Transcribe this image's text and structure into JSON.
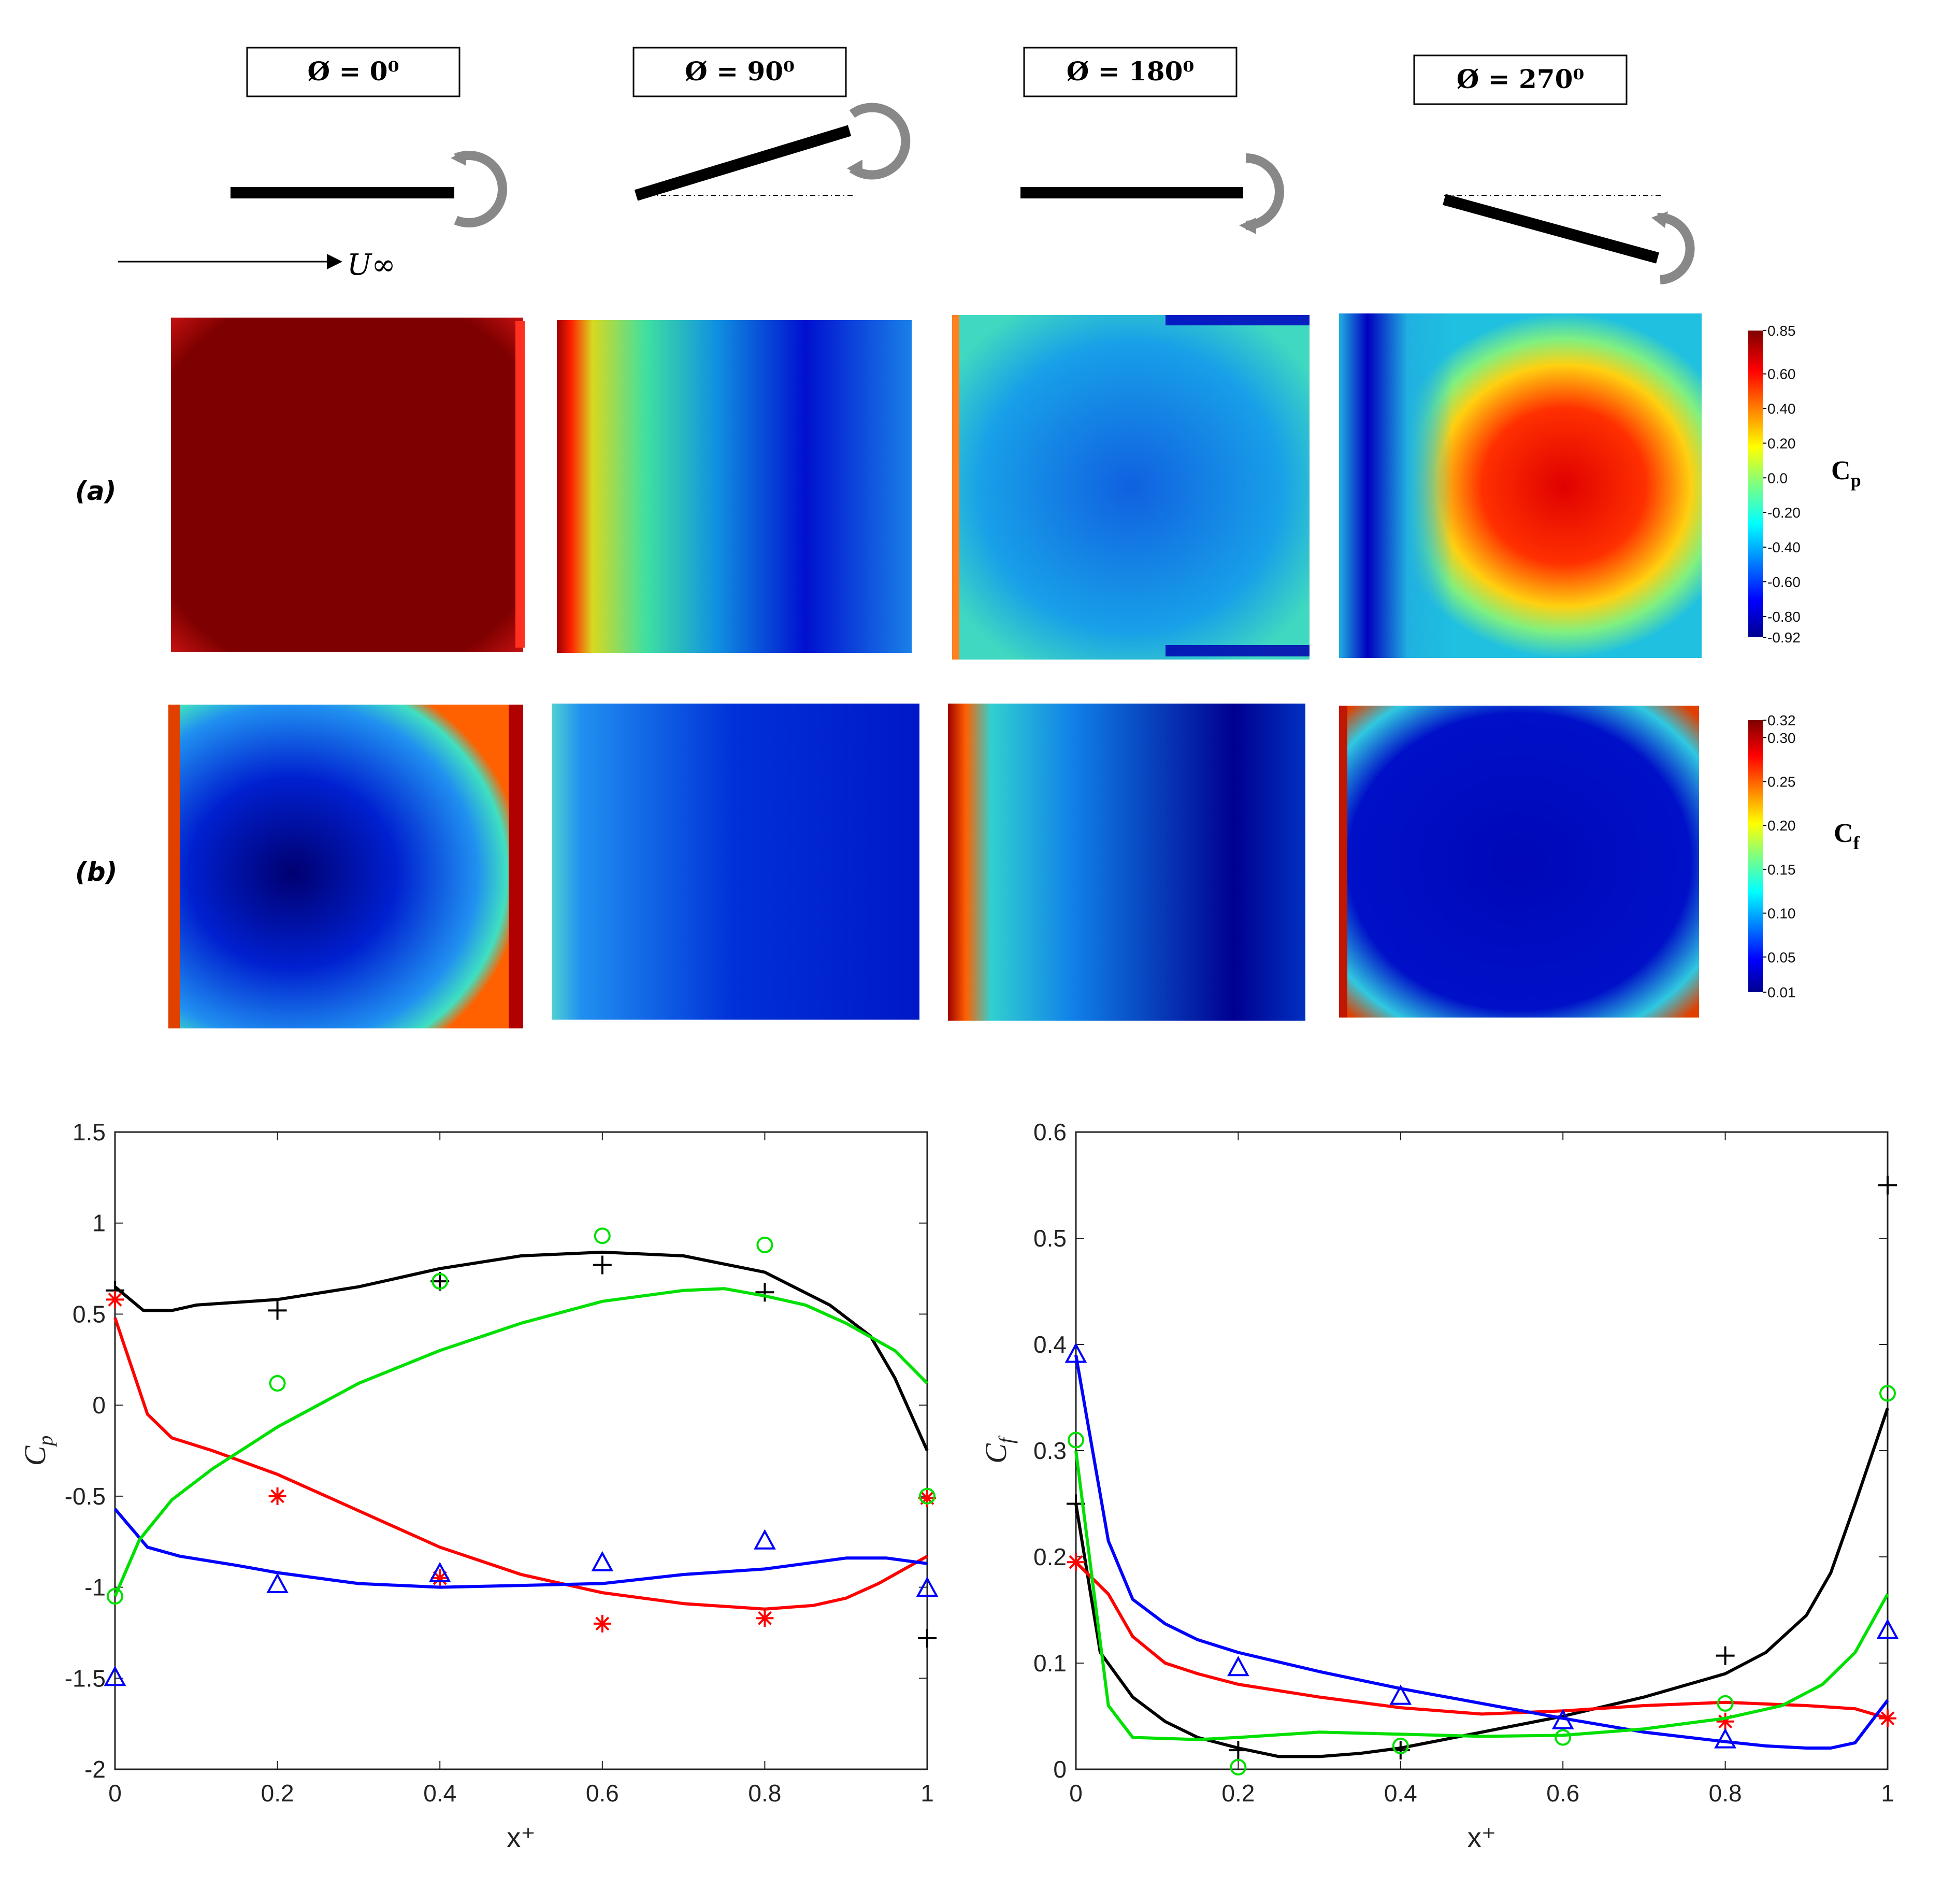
{
  "phases": [
    "Ø = 0⁰",
    "Ø = 90⁰",
    "Ø = 180⁰",
    "Ø = 270⁰"
  ],
  "freestream_label": "U∞",
  "row_labels": [
    "(a)",
    "(b)"
  ],
  "colorbars": [
    {
      "title": "C",
      "subscript": "p",
      "ticks": [
        "0.85",
        "0.60",
        "0.40",
        "0.20",
        "0.0",
        "-0.20",
        "-0.40",
        "-0.60",
        "-0.80",
        "-0.92"
      ],
      "min": -0.92,
      "max": 0.85
    },
    {
      "title": "C",
      "subscript": "f",
      "ticks": [
        "0.32",
        "0.30",
        "0.25",
        "0.20",
        "0.15",
        "0.10",
        "0.05",
        "0.01"
      ],
      "min": 0.01,
      "max": 0.32
    }
  ],
  "colors": {
    "phi0": "#000000",
    "phi90": "#ff0000",
    "phi180": "#0000ff",
    "phi270": "#00e000"
  },
  "chart_data": [
    {
      "type": "line",
      "xlabel": "x⁺",
      "ylabel": "C",
      "ylabel_sub": "p",
      "xlim": [
        0,
        1
      ],
      "ylim": [
        -2,
        1.5
      ],
      "xticks": [
        0,
        0.2,
        0.4,
        0.6,
        0.8,
        1
      ],
      "yticks": [
        1.5,
        1,
        0.5,
        0,
        -0.5,
        -1,
        -1.5,
        -2
      ],
      "xtick_labels": [
        "0",
        "0.2",
        "0.4",
        "0.6",
        "0.8",
        "1"
      ],
      "ytick_labels": [
        "1.5",
        "1",
        "0.5",
        "0",
        "-0.5",
        "-1",
        "-1.5",
        "-2"
      ],
      "series": [
        {
          "name": "phi0",
          "color": "#000000",
          "marker": "+",
          "line": [
            [
              0,
              0.65
            ],
            [
              0.035,
              0.52
            ],
            [
              0.07,
              0.52
            ],
            [
              0.1,
              0.55
            ],
            [
              0.2,
              0.58
            ],
            [
              0.3,
              0.65
            ],
            [
              0.4,
              0.75
            ],
            [
              0.5,
              0.82
            ],
            [
              0.6,
              0.84
            ],
            [
              0.7,
              0.82
            ],
            [
              0.8,
              0.73
            ],
            [
              0.88,
              0.55
            ],
            [
              0.93,
              0.38
            ],
            [
              0.96,
              0.15
            ],
            [
              1,
              -0.25
            ]
          ],
          "points": [
            [
              0,
              0.63
            ],
            [
              0.2,
              0.52
            ],
            [
              0.4,
              0.68
            ],
            [
              0.6,
              0.77
            ],
            [
              0.8,
              0.62
            ],
            [
              1,
              -1.28
            ]
          ]
        },
        {
          "name": "phi90",
          "color": "#ff0000",
          "marker": "*",
          "line": [
            [
              0,
              0.48
            ],
            [
              0.04,
              -0.05
            ],
            [
              0.07,
              -0.18
            ],
            [
              0.12,
              -0.25
            ],
            [
              0.2,
              -0.38
            ],
            [
              0.3,
              -0.58
            ],
            [
              0.4,
              -0.78
            ],
            [
              0.5,
              -0.93
            ],
            [
              0.6,
              -1.03
            ],
            [
              0.7,
              -1.09
            ],
            [
              0.8,
              -1.12
            ],
            [
              0.86,
              -1.1
            ],
            [
              0.9,
              -1.06
            ],
            [
              0.94,
              -0.98
            ],
            [
              1,
              -0.83
            ]
          ],
          "points": [
            [
              0,
              0.58
            ],
            [
              0.2,
              -0.5
            ],
            [
              0.4,
              -0.95
            ],
            [
              0.6,
              -1.2
            ],
            [
              0.8,
              -1.17
            ],
            [
              1,
              -0.51
            ]
          ]
        },
        {
          "name": "phi180",
          "color": "#0000ff",
          "marker": "triangle",
          "line": [
            [
              0,
              -0.57
            ],
            [
              0.04,
              -0.78
            ],
            [
              0.08,
              -0.83
            ],
            [
              0.15,
              -0.88
            ],
            [
              0.2,
              -0.92
            ],
            [
              0.3,
              -0.98
            ],
            [
              0.4,
              -1.0
            ],
            [
              0.5,
              -0.99
            ],
            [
              0.6,
              -0.98
            ],
            [
              0.7,
              -0.93
            ],
            [
              0.8,
              -0.9
            ],
            [
              0.9,
              -0.84
            ],
            [
              0.95,
              -0.84
            ],
            [
              1,
              -0.87
            ]
          ],
          "points": [
            [
              0,
              -1.5
            ],
            [
              0.2,
              -0.99
            ],
            [
              0.4,
              -0.93
            ],
            [
              0.6,
              -0.87
            ],
            [
              0.8,
              -0.75
            ],
            [
              1,
              -1.01
            ]
          ]
        },
        {
          "name": "phi270",
          "color": "#00e000",
          "marker": "o",
          "line": [
            [
              0,
              -1.05
            ],
            [
              0.03,
              -0.74
            ],
            [
              0.07,
              -0.52
            ],
            [
              0.12,
              -0.35
            ],
            [
              0.2,
              -0.12
            ],
            [
              0.3,
              0.12
            ],
            [
              0.4,
              0.3
            ],
            [
              0.5,
              0.45
            ],
            [
              0.6,
              0.57
            ],
            [
              0.7,
              0.63
            ],
            [
              0.75,
              0.64
            ],
            [
              0.8,
              0.6
            ],
            [
              0.85,
              0.55
            ],
            [
              0.9,
              0.45
            ],
            [
              0.96,
              0.3
            ],
            [
              1,
              0.12
            ]
          ],
          "points": [
            [
              0,
              -1.05
            ],
            [
              0.2,
              0.12
            ],
            [
              0.4,
              0.68
            ],
            [
              0.6,
              0.93
            ],
            [
              0.8,
              0.88
            ],
            [
              1,
              -0.5
            ]
          ]
        }
      ]
    },
    {
      "type": "line",
      "xlabel": "x⁺",
      "ylabel": "C",
      "ylabel_sub": "f",
      "xlim": [
        0,
        1
      ],
      "ylim": [
        0,
        0.6
      ],
      "xticks": [
        0,
        0.2,
        0.4,
        0.6,
        0.8,
        1
      ],
      "yticks": [
        0.6,
        0.5,
        0.4,
        0.3,
        0.2,
        0.1,
        0
      ],
      "xtick_labels": [
        "0",
        "0.2",
        "0.4",
        "0.6",
        "0.8",
        "1"
      ],
      "ytick_labels": [
        "0.6",
        "0.5",
        "0.4",
        "0.3",
        "0.2",
        "0.1",
        "0"
      ],
      "series": [
        {
          "name": "phi0",
          "color": "#000000",
          "marker": "+",
          "line": [
            [
              0,
              0.25
            ],
            [
              0.03,
              0.11
            ],
            [
              0.07,
              0.068
            ],
            [
              0.11,
              0.045
            ],
            [
              0.15,
              0.03
            ],
            [
              0.2,
              0.02
            ],
            [
              0.25,
              0.012
            ],
            [
              0.3,
              0.012
            ],
            [
              0.35,
              0.015
            ],
            [
              0.4,
              0.02
            ],
            [
              0.5,
              0.035
            ],
            [
              0.6,
              0.05
            ],
            [
              0.7,
              0.068
            ],
            [
              0.8,
              0.09
            ],
            [
              0.85,
              0.11
            ],
            [
              0.9,
              0.145
            ],
            [
              0.93,
              0.185
            ],
            [
              0.96,
              0.25
            ],
            [
              1,
              0.34
            ]
          ],
          "points": [
            [
              0,
              0.25
            ],
            [
              0.2,
              0.018
            ],
            [
              0.4,
              0.018
            ],
            [
              0.8,
              0.107
            ],
            [
              1,
              0.55
            ]
          ]
        },
        {
          "name": "phi90",
          "color": "#ff0000",
          "marker": "*",
          "line": [
            [
              0,
              0.195
            ],
            [
              0.04,
              0.165
            ],
            [
              0.07,
              0.125
            ],
            [
              0.11,
              0.1
            ],
            [
              0.15,
              0.09
            ],
            [
              0.2,
              0.08
            ],
            [
              0.3,
              0.068
            ],
            [
              0.4,
              0.058
            ],
            [
              0.5,
              0.052
            ],
            [
              0.6,
              0.055
            ],
            [
              0.7,
              0.06
            ],
            [
              0.8,
              0.063
            ],
            [
              0.9,
              0.06
            ],
            [
              0.96,
              0.057
            ],
            [
              1,
              0.048
            ]
          ],
          "points": [
            [
              0,
              0.195
            ],
            [
              0.8,
              0.045
            ],
            [
              1,
              0.048
            ]
          ]
        },
        {
          "name": "phi180",
          "color": "#0000ff",
          "marker": "triangle",
          "line": [
            [
              0,
              0.39
            ],
            [
              0.04,
              0.215
            ],
            [
              0.07,
              0.16
            ],
            [
              0.11,
              0.137
            ],
            [
              0.15,
              0.122
            ],
            [
              0.2,
              0.11
            ],
            [
              0.3,
              0.092
            ],
            [
              0.4,
              0.076
            ],
            [
              0.5,
              0.062
            ],
            [
              0.6,
              0.048
            ],
            [
              0.7,
              0.035
            ],
            [
              0.8,
              0.026
            ],
            [
              0.85,
              0.022
            ],
            [
              0.9,
              0.02
            ],
            [
              0.93,
              0.02
            ],
            [
              0.96,
              0.025
            ],
            [
              1,
              0.065
            ]
          ],
          "points": [
            [
              0,
              0.39
            ],
            [
              0.2,
              0.095
            ],
            [
              0.4,
              0.068
            ],
            [
              0.6,
              0.045
            ],
            [
              0.8,
              0.027
            ],
            [
              1,
              0.13
            ]
          ]
        },
        {
          "name": "phi270",
          "color": "#00e000",
          "marker": "o",
          "line": [
            [
              0,
              0.3
            ],
            [
              0.04,
              0.06
            ],
            [
              0.07,
              0.03
            ],
            [
              0.15,
              0.028
            ],
            [
              0.2,
              0.03
            ],
            [
              0.3,
              0.035
            ],
            [
              0.4,
              0.033
            ],
            [
              0.5,
              0.031
            ],
            [
              0.6,
              0.032
            ],
            [
              0.7,
              0.038
            ],
            [
              0.8,
              0.048
            ],
            [
              0.87,
              0.06
            ],
            [
              0.92,
              0.08
            ],
            [
              0.96,
              0.11
            ],
            [
              1,
              0.165
            ]
          ],
          "points": [
            [
              0,
              0.31
            ],
            [
              0.2,
              0.002
            ],
            [
              0.4,
              0.022
            ],
            [
              0.6,
              0.03
            ],
            [
              0.8,
              0.062
            ],
            [
              1,
              0.354
            ]
          ]
        }
      ]
    }
  ]
}
